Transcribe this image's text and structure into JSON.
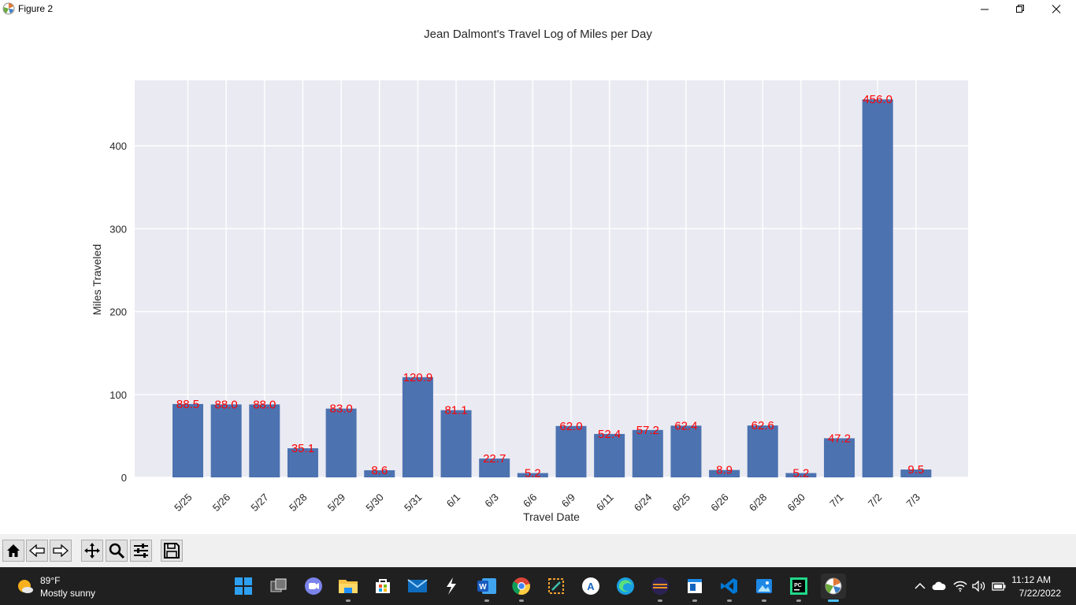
{
  "window": {
    "title": "Figure 2"
  },
  "chart_data": {
    "type": "bar",
    "title": "Jean Dalmont's Travel Log of Miles per Day",
    "xlabel": "Travel Date",
    "ylabel": "Miles Traveled",
    "categories": [
      "5/25",
      "5/26",
      "5/27",
      "5/28",
      "5/29",
      "5/30",
      "5/31",
      "6/1",
      "6/3",
      "6/6",
      "6/9",
      "6/11",
      "6/24",
      "6/25",
      "6/26",
      "6/28",
      "6/30",
      "7/1",
      "7/2",
      "7/3"
    ],
    "values": [
      88.5,
      88.0,
      88.0,
      35.1,
      83.0,
      8.6,
      120.9,
      81.1,
      22.7,
      5.2,
      62.0,
      52.4,
      57.2,
      62.4,
      8.9,
      62.6,
      5.2,
      47.2,
      456.0,
      9.5
    ],
    "value_labels": [
      "88.5",
      "88.0",
      "88.0",
      "35.1",
      "83.0",
      "8.6",
      "120.9",
      "81.1",
      "22.7",
      "5.2",
      "62.0",
      "52.4",
      "57.2",
      "62.4",
      "8.9",
      "62.6",
      "5.2",
      "47.2",
      "456.0",
      "9.5"
    ],
    "ylim": [
      0,
      479
    ],
    "yticks": [
      0,
      100,
      200,
      300,
      400
    ],
    "ytick_labels": [
      "0",
      "100",
      "200",
      "300",
      "400"
    ],
    "grid": true,
    "bar_color": "#4c72b0",
    "label_color": "#ff0000",
    "plot_background": "#eaeaf2"
  },
  "toolbar": {
    "buttons": [
      {
        "name": "home-button",
        "icon": "home-icon"
      },
      {
        "name": "back-button",
        "icon": "back-arrow-icon"
      },
      {
        "name": "forward-button",
        "icon": "forward-arrow-icon"
      },
      {
        "name": "pan-button",
        "icon": "move-icon"
      },
      {
        "name": "zoom-button",
        "icon": "magnifier-icon"
      },
      {
        "name": "configure-subplots-button",
        "icon": "sliders-icon"
      },
      {
        "name": "save-button",
        "icon": "floppy-icon"
      }
    ]
  },
  "taskbar": {
    "weather": {
      "temp": "89°F",
      "description": "Mostly sunny"
    },
    "clock": {
      "time": "11:12 AM",
      "date": "7/22/2022"
    },
    "apps": [
      "start",
      "task-view",
      "teams",
      "file-explorer",
      "store",
      "mail",
      "app-s",
      "word",
      "chrome",
      "snip",
      "app-a",
      "edge",
      "eclipse",
      "notepad",
      "vscode",
      "photos",
      "pycharm",
      "python-figure"
    ]
  }
}
